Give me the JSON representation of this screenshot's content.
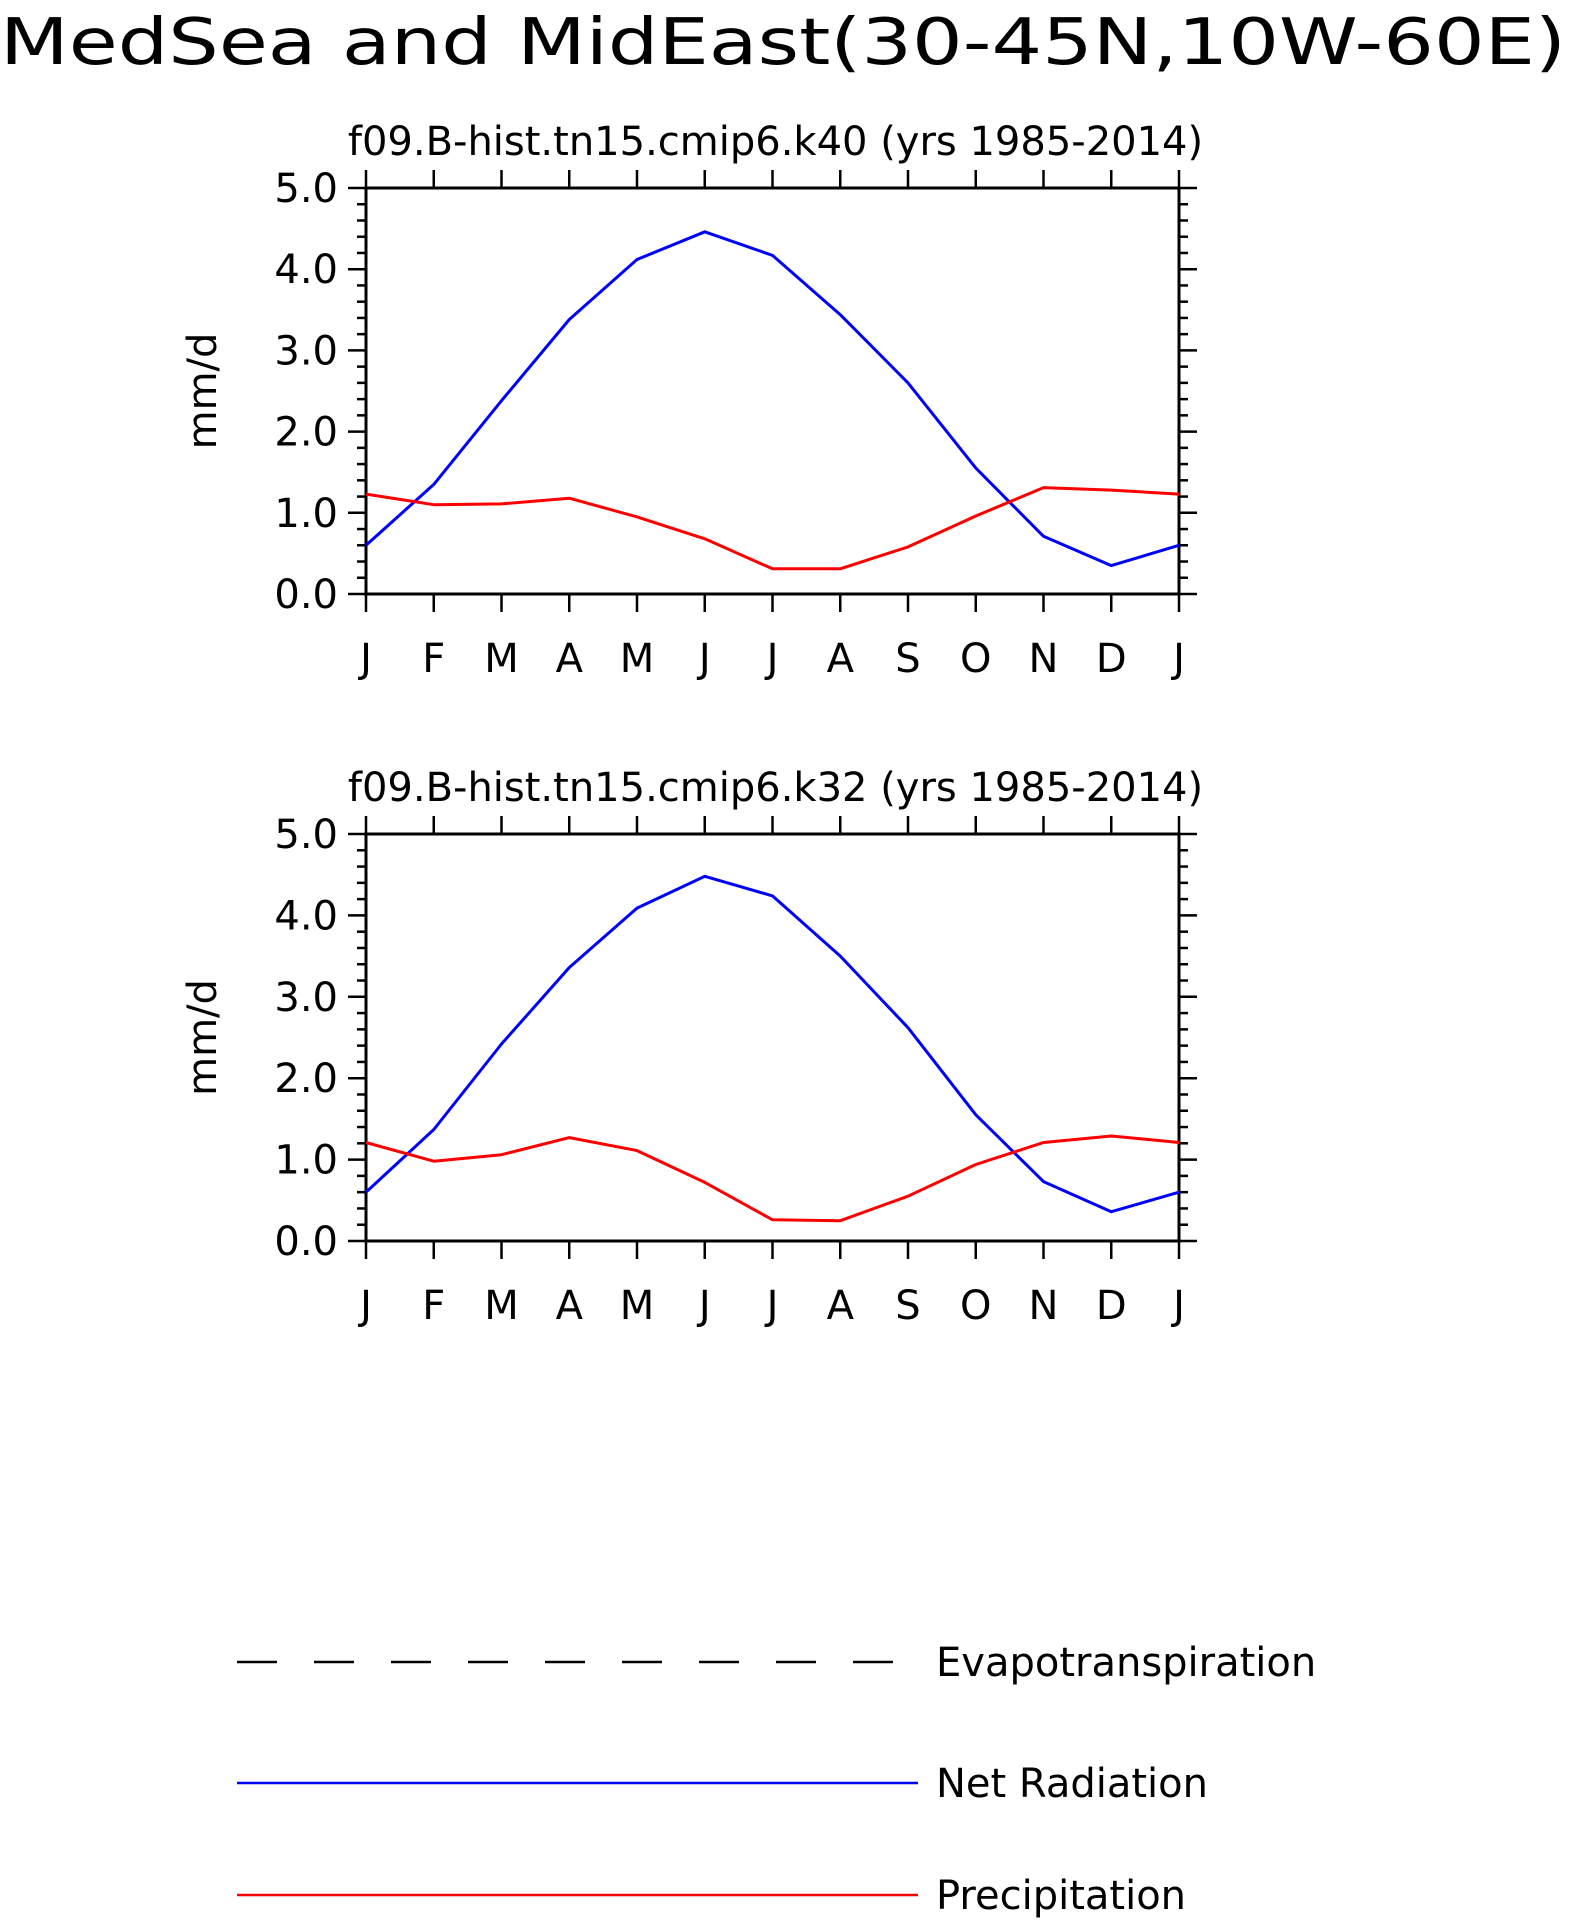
{
  "page_title": "MedSea and MidEast(30-45N,10W-60E)",
  "chart_data": [
    {
      "type": "line",
      "title": "f09.B-hist.tn15.cmip6.k40 (yrs 1985-2014)",
      "xlabel": "",
      "ylabel": "mm/d",
      "categories": [
        "J",
        "F",
        "M",
        "A",
        "M",
        "J",
        "J",
        "A",
        "S",
        "O",
        "N",
        "D",
        "J"
      ],
      "yticks": [
        "0.0",
        "1.0",
        "2.0",
        "3.0",
        "4.0",
        "5.0"
      ],
      "ylim": [
        0,
        5
      ],
      "series": [
        {
          "name": "Net Radiation",
          "color": "#0000ff",
          "values": [
            0.6,
            1.35,
            2.38,
            3.38,
            4.12,
            4.46,
            4.17,
            3.44,
            2.6,
            1.55,
            0.71,
            0.35,
            0.6
          ]
        },
        {
          "name": "Precipitation",
          "color": "#ff0000",
          "values": [
            1.23,
            1.1,
            1.11,
            1.18,
            0.95,
            0.68,
            0.31,
            0.31,
            0.58,
            0.96,
            1.31,
            1.28,
            1.23
          ]
        }
      ]
    },
    {
      "type": "line",
      "title": "f09.B-hist.tn15.cmip6.k32 (yrs 1985-2014)",
      "xlabel": "",
      "ylabel": "mm/d",
      "categories": [
        "J",
        "F",
        "M",
        "A",
        "M",
        "J",
        "J",
        "A",
        "S",
        "O",
        "N",
        "D",
        "J"
      ],
      "yticks": [
        "0.0",
        "1.0",
        "2.0",
        "3.0",
        "4.0",
        "5.0"
      ],
      "ylim": [
        0,
        5
      ],
      "series": [
        {
          "name": "Net Radiation",
          "color": "#0000ff",
          "values": [
            0.6,
            1.37,
            2.42,
            3.36,
            4.09,
            4.48,
            4.24,
            3.5,
            2.62,
            1.55,
            0.73,
            0.36,
            0.6
          ]
        },
        {
          "name": "Precipitation",
          "color": "#ff0000",
          "values": [
            1.21,
            0.98,
            1.06,
            1.27,
            1.11,
            0.72,
            0.26,
            0.25,
            0.55,
            0.94,
            1.21,
            1.29,
            1.21
          ]
        }
      ]
    }
  ],
  "legend": {
    "placement": "bottom",
    "items": [
      {
        "label": "Evapotranspiration",
        "color": "#000000",
        "style": "dashed"
      },
      {
        "label": "Net Radiation",
        "color": "#0000ff",
        "style": "solid"
      },
      {
        "label": "Precipitation",
        "color": "#ff0000",
        "style": "solid"
      }
    ]
  }
}
